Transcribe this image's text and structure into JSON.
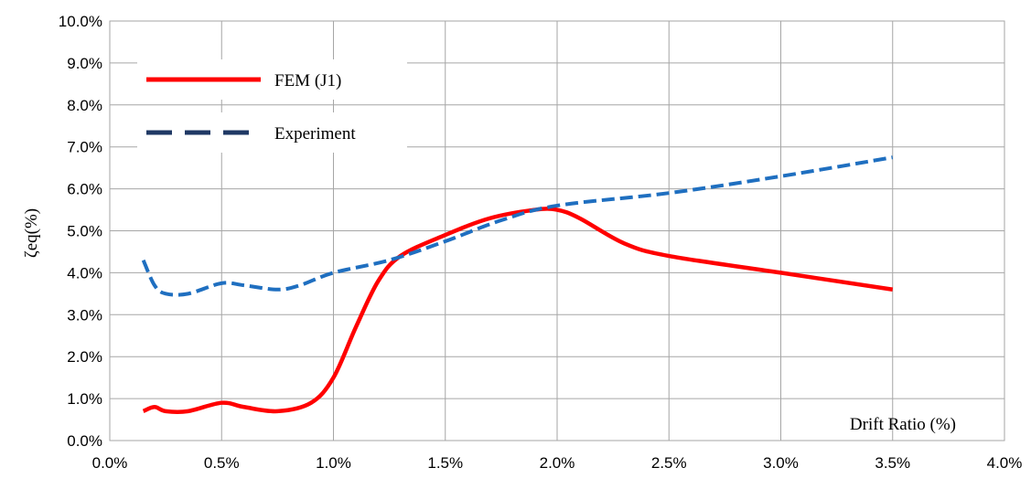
{
  "chart_data": {
    "type": "line",
    "y_label": "ζeq(%)",
    "x_label": "Drift Ratio (%)",
    "series": [
      {
        "name": "FEM (J1)",
        "color": "#ff0000",
        "dash": "solid",
        "x": [
          0.15,
          0.2,
          0.25,
          0.35,
          0.5,
          0.6,
          0.75,
          0.9,
          1.0,
          1.1,
          1.2,
          1.3,
          1.5,
          1.7,
          1.9,
          2.0,
          2.1,
          2.3,
          2.5,
          3.0,
          3.5
        ],
        "values": [
          0.7,
          0.8,
          0.7,
          0.7,
          0.9,
          0.8,
          0.7,
          0.9,
          1.5,
          2.7,
          3.8,
          4.4,
          4.9,
          5.3,
          5.5,
          5.5,
          5.3,
          4.7,
          4.4,
          4.0,
          3.6
        ]
      },
      {
        "name": "Experiment",
        "color": "#1f6fc0",
        "dash": "dashed",
        "x": [
          0.15,
          0.2,
          0.25,
          0.35,
          0.5,
          0.6,
          0.75,
          0.85,
          1.0,
          1.25,
          1.5,
          1.75,
          2.0,
          2.5,
          3.0,
          3.5
        ],
        "values": [
          4.3,
          3.7,
          3.5,
          3.5,
          3.75,
          3.7,
          3.6,
          3.7,
          4.0,
          4.3,
          4.75,
          5.25,
          5.6,
          5.9,
          6.3,
          6.75
        ]
      }
    ],
    "legend_colors": [
      "#ff0000",
      "#1f3864"
    ],
    "xlim": [
      0,
      4
    ],
    "ylim": [
      0,
      10
    ],
    "xticks": [
      {
        "value": 0,
        "label": "0.0%"
      },
      {
        "value": 0.5,
        "label": "0.5%"
      },
      {
        "value": 1,
        "label": "1.0%"
      },
      {
        "value": 1.5,
        "label": "1.5%"
      },
      {
        "value": 2,
        "label": "2.0%"
      },
      {
        "value": 2.5,
        "label": "2.5%"
      },
      {
        "value": 3,
        "label": "3.0%"
      },
      {
        "value": 3.5,
        "label": "3.5%"
      },
      {
        "value": 4,
        "label": "4.0%"
      }
    ],
    "yticks": [
      {
        "value": 0,
        "label": "0.0%"
      },
      {
        "value": 1,
        "label": "1.0%"
      },
      {
        "value": 2,
        "label": "2.0%"
      },
      {
        "value": 3,
        "label": "3.0%"
      },
      {
        "value": 4,
        "label": "4.0%"
      },
      {
        "value": 5,
        "label": "5.0%"
      },
      {
        "value": 6,
        "label": "6.0%"
      },
      {
        "value": 7,
        "label": "7.0%"
      },
      {
        "value": 8,
        "label": "8.0%"
      },
      {
        "value": 9,
        "label": "9.0%"
      },
      {
        "value": 10,
        "label": "10.0%"
      }
    ],
    "grid": true,
    "legend": "upper left"
  }
}
